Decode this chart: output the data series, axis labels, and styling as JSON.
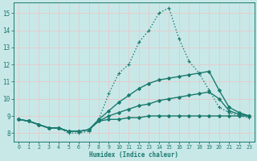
{
  "xlabel": "Humidex (Indice chaleur)",
  "xlim": [
    -0.5,
    23.5
  ],
  "ylim": [
    7.5,
    15.6
  ],
  "yticks": [
    8,
    9,
    10,
    11,
    12,
    13,
    14,
    15
  ],
  "xticks": [
    0,
    1,
    2,
    3,
    4,
    5,
    6,
    7,
    8,
    9,
    10,
    11,
    12,
    13,
    14,
    15,
    16,
    17,
    18,
    19,
    20,
    21,
    22,
    23
  ],
  "bg_color": "#c8e8e8",
  "grid_color": "#e8c8c8",
  "line_color": "#1a7a6e",
  "lines": [
    {
      "x": [
        0,
        1,
        2,
        3,
        4,
        5,
        6,
        7,
        8,
        9,
        10,
        11,
        12,
        13,
        14,
        15,
        16,
        17,
        18,
        19,
        20,
        21,
        22,
        23
      ],
      "y": [
        8.8,
        8.7,
        8.5,
        8.3,
        8.3,
        8.0,
        8.0,
        8.1,
        8.8,
        10.3,
        11.5,
        12.0,
        13.3,
        14.0,
        15.0,
        15.3,
        13.5,
        12.2,
        11.5,
        10.5,
        9.5,
        9.2,
        9.0,
        8.9
      ],
      "style": ":",
      "marker": "+",
      "markersize": 3.0,
      "linewidth": 1.0
    },
    {
      "x": [
        0,
        1,
        2,
        3,
        4,
        5,
        6,
        7,
        8,
        9,
        10,
        11,
        12,
        13,
        14,
        15,
        16,
        17,
        18,
        19,
        20,
        21,
        22,
        23
      ],
      "y": [
        8.8,
        8.7,
        8.5,
        8.3,
        8.3,
        8.1,
        8.1,
        8.2,
        8.8,
        9.3,
        9.8,
        10.2,
        10.6,
        10.9,
        11.1,
        11.2,
        11.3,
        11.4,
        11.5,
        11.6,
        10.5,
        9.5,
        9.2,
        9.0
      ],
      "style": "-",
      "marker": "D",
      "markersize": 2.0,
      "linewidth": 1.0
    },
    {
      "x": [
        0,
        1,
        2,
        3,
        4,
        5,
        6,
        7,
        8,
        9,
        10,
        11,
        12,
        13,
        14,
        15,
        16,
        17,
        18,
        19,
        20,
        21,
        22,
        23
      ],
      "y": [
        8.8,
        8.7,
        8.5,
        8.3,
        8.3,
        8.1,
        8.1,
        8.2,
        8.7,
        9.0,
        9.2,
        9.4,
        9.6,
        9.7,
        9.9,
        10.0,
        10.1,
        10.2,
        10.3,
        10.4,
        10.0,
        9.3,
        9.1,
        9.0
      ],
      "style": "-",
      "marker": "D",
      "markersize": 2.0,
      "linewidth": 1.0
    },
    {
      "x": [
        0,
        1,
        2,
        3,
        4,
        5,
        6,
        7,
        8,
        9,
        10,
        11,
        12,
        13,
        14,
        15,
        16,
        17,
        18,
        19,
        20,
        21,
        22,
        23
      ],
      "y": [
        8.8,
        8.7,
        8.5,
        8.3,
        8.3,
        8.1,
        8.1,
        8.2,
        8.7,
        8.8,
        8.8,
        8.9,
        8.9,
        9.0,
        9.0,
        9.0,
        9.0,
        9.0,
        9.0,
        9.0,
        9.0,
        9.0,
        9.0,
        9.0
      ],
      "style": "-",
      "marker": "D",
      "markersize": 2.0,
      "linewidth": 1.0
    }
  ]
}
